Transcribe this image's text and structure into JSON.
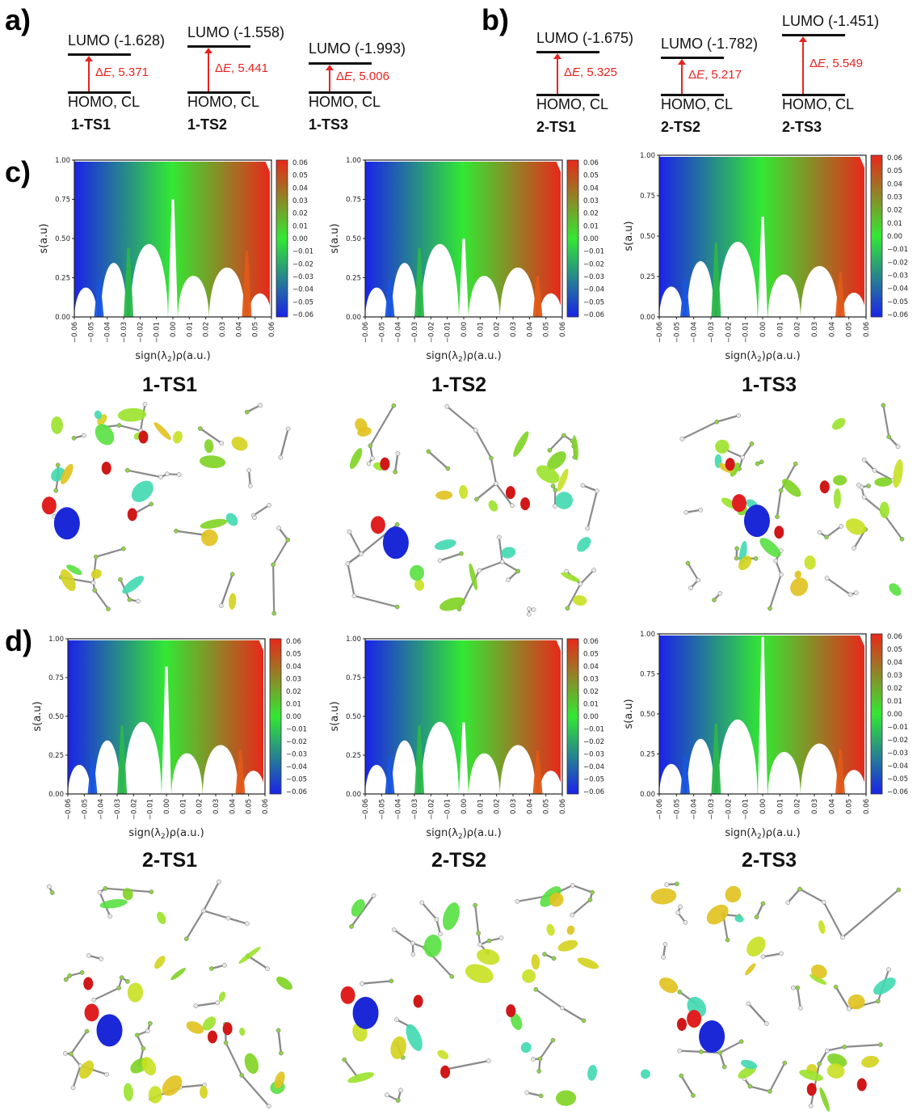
{
  "panels": {
    "a": "a)",
    "b": "b)",
    "c": "c)",
    "d": "d)"
  },
  "energy_diagrams": [
    {
      "id": "1-TS1",
      "lumo_label": "LUMO (-1.628)",
      "homo_label": "HOMO, CL",
      "delta_label": "5.371",
      "name": "1-TS1"
    },
    {
      "id": "1-TS2",
      "lumo_label": "LUMO (-1.558)",
      "homo_label": "HOMO, CL",
      "delta_label": "5.441",
      "name": "1-TS2"
    },
    {
      "id": "1-TS3",
      "lumo_label": "LUMO (-1.993)",
      "homo_label": "HOMO, CL",
      "delta_label": "5.006",
      "name": "1-TS3"
    },
    {
      "id": "2-TS1",
      "lumo_label": "LUMO (-1.675)",
      "homo_label": "HOMO, CL",
      "delta_label": "5.325",
      "name": "2-TS1"
    },
    {
      "id": "2-TS2",
      "lumo_label": "LUMO (-1.782)",
      "homo_label": "HOMO, CL",
      "delta_label": "5.217",
      "name": "2-TS2"
    },
    {
      "id": "2-TS3",
      "lumo_label": "LUMO (-1.451)",
      "homo_label": "HOMO, CL",
      "delta_label": "5.549",
      "name": "2-TS3"
    }
  ],
  "delta_prefix": "ΔE, ",
  "titles": {
    "c1": "1-TS1",
    "c2": "1-TS2",
    "c3": "1-TS3",
    "d1": "2-TS1",
    "d2": "2-TS2",
    "d3": "2-TS3"
  },
  "colors": {
    "accent": "#e8231f",
    "blue": "#1a23e8",
    "green": "#33e833",
    "red": "#e8281a"
  },
  "chart_data": [
    {
      "id": "c1",
      "type": "scatter",
      "title": "",
      "xlabel": "sign(λ2)ρ(a.u.)",
      "ylabel": "s(a.u)",
      "xlim": [
        -0.06,
        0.06
      ],
      "ylim": [
        0,
        1
      ],
      "xticks": [
        "-0.06",
        "-0.05",
        "-0.04",
        "-0.03",
        "-0.02",
        "-0.01",
        "0.00",
        "0.01",
        "0.02",
        "0.03",
        "0.04",
        "0.05",
        "0.06"
      ],
      "yticks": [
        "0.00",
        "0.25",
        "0.50",
        "0.75",
        "1.00"
      ],
      "colorbar": {
        "ticks": [
          "0.06",
          "0.05",
          "0.04",
          "0.03",
          "0.02",
          "0.01",
          "0.00",
          "-0.01",
          "-0.02",
          "-0.03",
          "-0.04",
          "-0.05",
          "-0.06"
        ]
      },
      "spikes": [
        {
          "x": -0.045,
          "peak": 0.24
        },
        {
          "x": -0.027,
          "peak": 0.44
        },
        {
          "x": 0.0,
          "peak": 0.75
        },
        {
          "x": 0.045,
          "peak": 0.42
        }
      ]
    },
    {
      "id": "c2",
      "type": "scatter",
      "title": "",
      "xlabel": "sign(λ2)ρ(a.u.)",
      "ylabel": "s(a.u)",
      "xlim": [
        -0.06,
        0.06
      ],
      "ylim": [
        0,
        1
      ],
      "xticks": [
        "-0.06",
        "-0.05",
        "-0.04",
        "-0.03",
        "-0.02",
        "-0.01",
        "0.00",
        "0.01",
        "0.02",
        "0.03",
        "0.04",
        "0.05",
        "0.06"
      ],
      "yticks": [
        "0.00",
        "0.25",
        "0.50",
        "0.75",
        "1.00"
      ],
      "colorbar": {
        "ticks": [
          "0.06",
          "0.05",
          "0.04",
          "0.03",
          "0.02",
          "0.01",
          "0.00",
          "-0.01",
          "-0.02",
          "-0.03",
          "-0.04",
          "-0.05",
          "-0.06"
        ]
      },
      "spikes": [
        {
          "x": -0.045,
          "peak": 0.24
        },
        {
          "x": -0.027,
          "peak": 0.44
        },
        {
          "x": 0.0,
          "peak": 0.5
        },
        {
          "x": 0.045,
          "peak": 0.26
        }
      ]
    },
    {
      "id": "c3",
      "type": "scatter",
      "title": "",
      "xlabel": "sign(λ2)ρ(a.u.)",
      "ylabel": "s(a.u)",
      "xlim": [
        -0.06,
        0.06
      ],
      "ylim": [
        0,
        1
      ],
      "xticks": [
        "-0.06",
        "-0.05",
        "-0.04",
        "-0.03",
        "-0.02",
        "-0.01",
        "0.00",
        "0.01",
        "0.02",
        "0.03",
        "0.04",
        "0.05",
        "0.06"
      ],
      "yticks": [
        "0.00",
        "0.25",
        "0.50",
        "0.75",
        "1.00"
      ],
      "colorbar": {
        "ticks": [
          "0.06",
          "0.05",
          "0.04",
          "0.03",
          "0.02",
          "0.01",
          "0.00",
          "-0.01",
          "-0.02",
          "-0.03",
          "-0.04",
          "-0.05",
          "-0.06"
        ]
      },
      "spikes": [
        {
          "x": -0.045,
          "peak": 0.24
        },
        {
          "x": -0.027,
          "peak": 0.46
        },
        {
          "x": 0.0,
          "peak": 0.62
        },
        {
          "x": 0.045,
          "peak": 0.28
        }
      ]
    },
    {
      "id": "d1",
      "type": "scatter",
      "title": "",
      "xlabel": "sign(λ2)ρ(a.u.)",
      "ylabel": "s(a.u)",
      "xlim": [
        -0.06,
        0.06
      ],
      "ylim": [
        0,
        1
      ],
      "xticks": [
        "-0.06",
        "-0.05",
        "-0.04",
        "-0.03",
        "-0.02",
        "-0.01",
        "0.00",
        "0.01",
        "0.02",
        "0.03",
        "0.04",
        "0.05",
        "0.06"
      ],
      "yticks": [
        "0.00",
        "0.25",
        "0.50",
        "0.75",
        "1.00"
      ],
      "colorbar": {
        "ticks": [
          "0.06",
          "0.05",
          "0.04",
          "0.03",
          "0.02",
          "0.01",
          "0.00",
          "-0.01",
          "-0.02",
          "-0.03",
          "-0.04",
          "-0.05",
          "-0.06"
        ]
      },
      "spikes": [
        {
          "x": -0.045,
          "peak": 0.24
        },
        {
          "x": -0.027,
          "peak": 0.44
        },
        {
          "x": 0.0,
          "peak": 0.82
        },
        {
          "x": 0.045,
          "peak": 0.28
        }
      ]
    },
    {
      "id": "d2",
      "type": "scatter",
      "title": "",
      "xlabel": "sign(λ2)ρ(a.u.)",
      "ylabel": "s(a.u)",
      "xlim": [
        -0.06,
        0.06
      ],
      "ylim": [
        0,
        1
      ],
      "xticks": [
        "-0.06",
        "-0.05",
        "-0.04",
        "-0.03",
        "-0.02",
        "-0.01",
        "0.00",
        "0.01",
        "0.02",
        "0.03",
        "0.04",
        "0.05",
        "0.06"
      ],
      "yticks": [
        "0.00",
        "0.25",
        "0.50",
        "0.75",
        "1.00"
      ],
      "colorbar": {
        "ticks": [
          "0.06",
          "0.05",
          "0.04",
          "0.03",
          "0.02",
          "0.01",
          "0.00",
          "-0.01",
          "-0.02",
          "-0.03",
          "-0.04",
          "-0.05",
          "-0.06"
        ]
      },
      "spikes": [
        {
          "x": -0.045,
          "peak": 0.24
        },
        {
          "x": -0.027,
          "peak": 0.44
        },
        {
          "x": 0.0,
          "peak": 0.46
        },
        {
          "x": 0.045,
          "peak": 0.28
        }
      ]
    },
    {
      "id": "d3",
      "type": "scatter",
      "title": "",
      "xlabel": "sign(λ2)ρ(a.u.)",
      "ylabel": "s(a.u)",
      "xlim": [
        -0.06,
        0.06
      ],
      "ylim": [
        0,
        1
      ],
      "xticks": [
        "-0.06",
        "-0.05",
        "-0.04",
        "-0.03",
        "-0.02",
        "-0.01",
        "0.00",
        "0.01",
        "0.02",
        "0.03",
        "0.04",
        "0.05",
        "0.06"
      ],
      "yticks": [
        "0.00",
        "0.25",
        "0.50",
        "0.75",
        "1.00"
      ],
      "colorbar": {
        "ticks": [
          "0.06",
          "0.05",
          "0.04",
          "0.03",
          "0.02",
          "0.01",
          "0.00",
          "-0.01",
          "-0.02",
          "-0.03",
          "-0.04",
          "-0.05",
          "-0.06"
        ]
      },
      "spikes": [
        {
          "x": -0.045,
          "peak": 0.24
        },
        {
          "x": -0.027,
          "peak": 0.44
        },
        {
          "x": 0.0,
          "peak": 0.98
        },
        {
          "x": 0.045,
          "peak": 0.28
        }
      ]
    }
  ]
}
